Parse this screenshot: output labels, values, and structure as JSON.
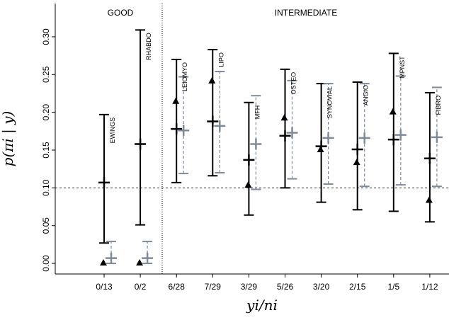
{
  "chart_data": {
    "type": "errorbar",
    "categories": [
      "0/13",
      "0/2",
      "6/28",
      "7/29",
      "3/29",
      "5/26",
      "3/20",
      "2/15",
      "1/5",
      "1/12"
    ],
    "subtypes": [
      "EWINGS",
      "RHABDO",
      "LEIOMYO",
      "LIPO",
      "MFH",
      "OSTEO",
      "SYNOVIAL",
      "ANGIO",
      "MPNST",
      "FIBRO"
    ],
    "groups": [
      "GOOD",
      "INTERMEDIATE"
    ],
    "y_label": "p(πi | y)",
    "x_label": "yi/ni",
    "series": [
      {
        "color": "#000000",
        "values": [
          0.107,
          0.158,
          0.178,
          0.188,
          0.137,
          0.169,
          0.155,
          0.151,
          0.164,
          0.139
        ],
        "lower": [
          0.027,
          0.051,
          0.107,
          0.116,
          0.064,
          0.1,
          0.081,
          0.071,
          0.069,
          0.055
        ],
        "upper": [
          0.197,
          0.309,
          0.27,
          0.283,
          0.213,
          0.257,
          0.238,
          0.24,
          0.278,
          0.226
        ]
      },
      {
        "color": "#7f8a99",
        "values": [
          0.007,
          0.007,
          0.176,
          0.182,
          0.158,
          0.173,
          0.166,
          0.166,
          0.17,
          0.167
        ],
        "lower": [
          0.0,
          0.0,
          0.119,
          0.12,
          0.098,
          0.112,
          0.105,
          0.102,
          0.104,
          0.102
        ],
        "upper": [
          0.029,
          0.029,
          0.247,
          0.254,
          0.222,
          0.242,
          0.238,
          0.238,
          0.248,
          0.233
        ]
      }
    ],
    "observed": [
      0,
      0,
      0.214,
      0.241,
      0.103,
      0.192,
      0.15,
      0.133,
      0.2,
      0.083
    ],
    "reference_line": 0.1,
    "ylim": [
      -0.014,
      0.344
    ],
    "yticks": [
      {
        "value": 0,
        "label": "0.00"
      },
      {
        "value": 0.05,
        "label": "0.05"
      },
      {
        "value": 0.1,
        "label": "0.10"
      },
      {
        "value": 0.15,
        "label": "0.15"
      },
      {
        "value": 0.2,
        "label": "0.20"
      },
      {
        "value": 0.25,
        "label": "0.25"
      },
      {
        "value": 0.3,
        "label": "0.30"
      }
    ]
  }
}
